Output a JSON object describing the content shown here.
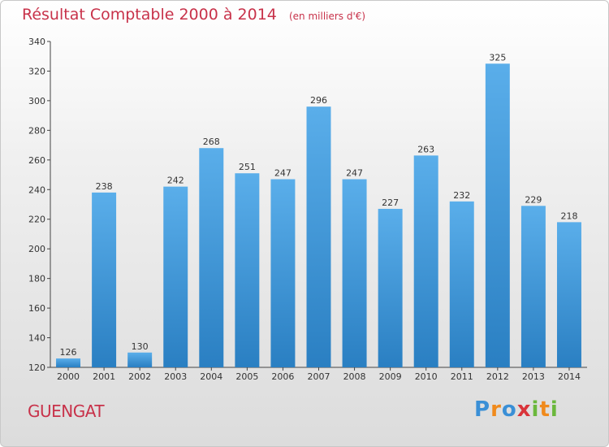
{
  "title": "Résultat Comptable 2000 à 2014",
  "unit_note": "(en milliers d'€)",
  "commune": "GUENGAT",
  "logo": {
    "text": "Proxiti",
    "letters": [
      {
        "ch": "P",
        "color": "#3a8fd6"
      },
      {
        "ch": "r",
        "color": "#f08a1c"
      },
      {
        "ch": "o",
        "color": "#3a8fd6"
      },
      {
        "ch": "x",
        "color": "#d9343a"
      },
      {
        "ch": "i",
        "color": "#6bb83c"
      },
      {
        "ch": "t",
        "color": "#f08a1c"
      },
      {
        "ch": "i",
        "color": "#6bb83c"
      }
    ]
  },
  "colors": {
    "bar_top": "#5aaeea",
    "bar_bottom": "#2a7fc2",
    "title": "#c8324a"
  },
  "chart_data": {
    "type": "bar",
    "categories": [
      "2000",
      "2001",
      "2002",
      "2003",
      "2004",
      "2005",
      "2006",
      "2007",
      "2008",
      "2009",
      "2010",
      "2011",
      "2012",
      "2013",
      "2014"
    ],
    "values": [
      126,
      238,
      130,
      242,
      268,
      251,
      247,
      296,
      247,
      227,
      263,
      232,
      325,
      229,
      218
    ],
    "ylim": [
      120,
      340
    ],
    "yticks": [
      120,
      140,
      160,
      180,
      200,
      220,
      240,
      260,
      280,
      300,
      320,
      340
    ],
    "grid": false,
    "data_labels": true
  }
}
